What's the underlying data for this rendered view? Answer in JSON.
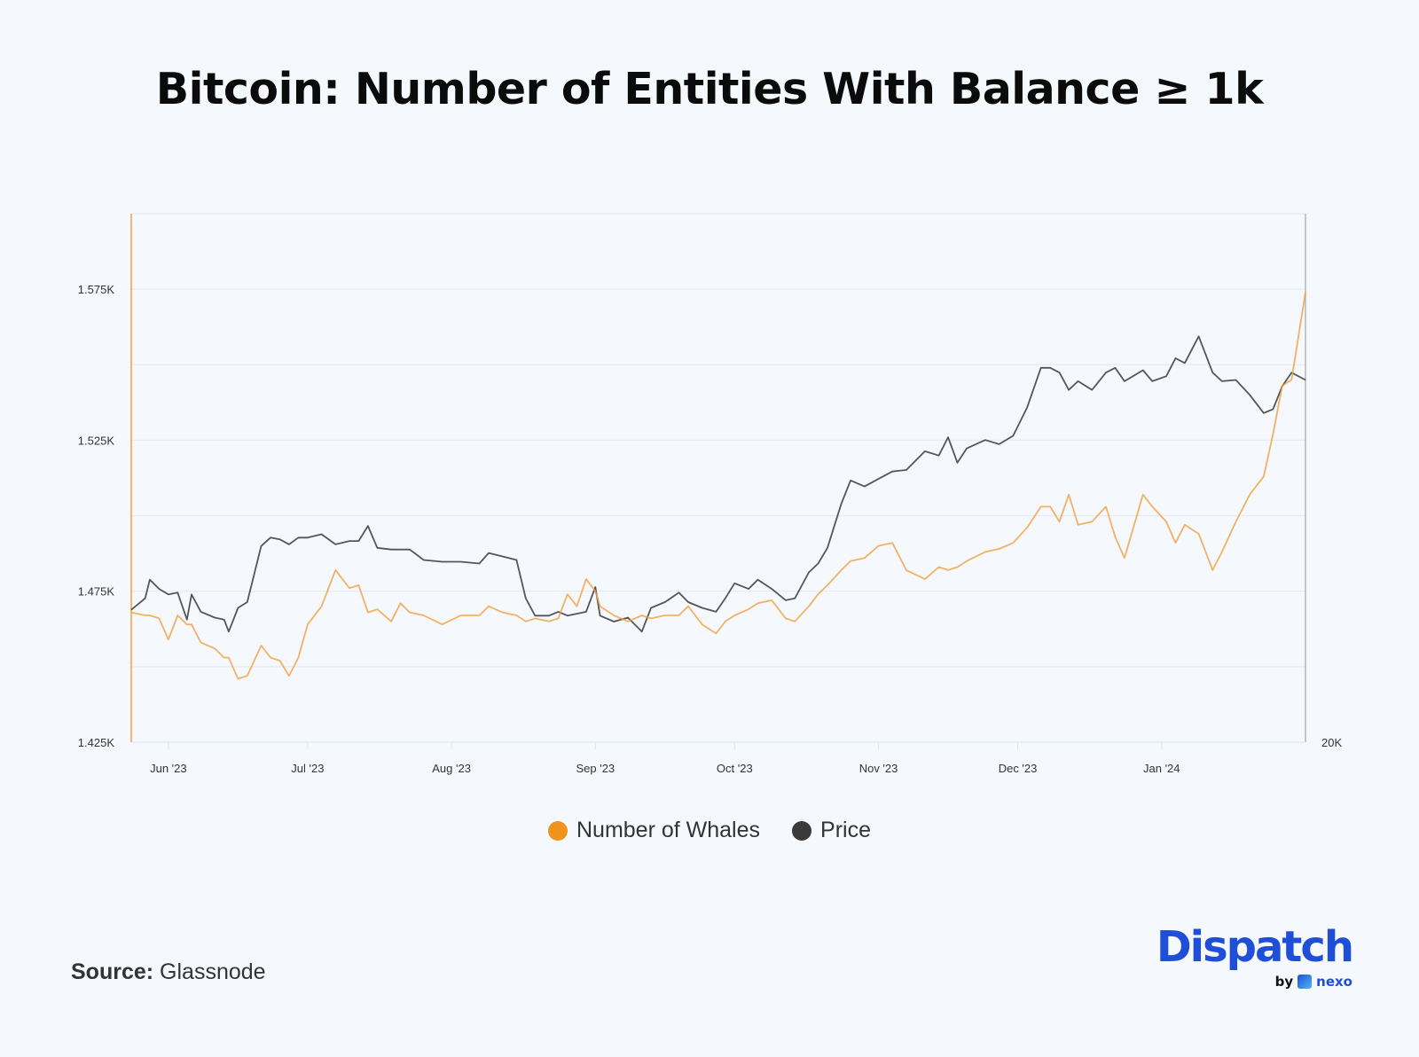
{
  "title": "Bitcoin: Number of Entities With Balance ≥ 1k",
  "source_label": "Source:",
  "source_value": "Glassnode",
  "logo": {
    "word": "Dispatch",
    "by": "by",
    "partner": "nexo"
  },
  "colors": {
    "whales": "#f0a040",
    "price": "#3a3a3a",
    "brand": "#1f4fd8"
  },
  "chart_data": {
    "type": "line",
    "title": "Bitcoin: Number of Entities With Balance ≥ 1k",
    "xlabel": "",
    "ylabel": "",
    "x_range": [
      "2023-05-24",
      "2024-02-01"
    ],
    "x_ticks": [
      {
        "date": "2023-06-01",
        "label": "Jun '23"
      },
      {
        "date": "2023-07-01",
        "label": "Jul '23"
      },
      {
        "date": "2023-08-01",
        "label": "Aug '23"
      },
      {
        "date": "2023-09-01",
        "label": "Sep '23"
      },
      {
        "date": "2023-10-01",
        "label": "Oct '23"
      },
      {
        "date": "2023-11-01",
        "label": "Nov '23"
      },
      {
        "date": "2023-12-01",
        "label": "Dec '23"
      },
      {
        "date": "2024-01-01",
        "label": "Jan '24"
      }
    ],
    "y_left": {
      "ylim": [
        1425,
        1600
      ],
      "ticks": [
        1425,
        1475,
        1525,
        1575
      ],
      "tick_labels": [
        "1.425K",
        "1.475K",
        "1.525K",
        "1.575K"
      ],
      "grid_step": 25
    },
    "y_right": {
      "scale": "log",
      "ylim": [
        20000,
        57000
      ],
      "ticks": [
        20000
      ],
      "tick_labels": [
        "20K"
      ]
    },
    "grid": true,
    "legend_position": "bottom",
    "dates": [
      "2023-05-24",
      "2023-05-27",
      "2023-05-28",
      "2023-05-30",
      "2023-06-01",
      "2023-06-03",
      "2023-06-05",
      "2023-06-06",
      "2023-06-08",
      "2023-06-11",
      "2023-06-13",
      "2023-06-14",
      "2023-06-16",
      "2023-06-18",
      "2023-06-21",
      "2023-06-23",
      "2023-06-25",
      "2023-06-27",
      "2023-06-29",
      "2023-07-01",
      "2023-07-04",
      "2023-07-07",
      "2023-07-10",
      "2023-07-12",
      "2023-07-14",
      "2023-07-16",
      "2023-07-19",
      "2023-07-21",
      "2023-07-23",
      "2023-07-26",
      "2023-07-30",
      "2023-08-03",
      "2023-08-07",
      "2023-08-09",
      "2023-08-12",
      "2023-08-15",
      "2023-08-17",
      "2023-08-19",
      "2023-08-22",
      "2023-08-24",
      "2023-08-26",
      "2023-08-28",
      "2023-08-30",
      "2023-09-01",
      "2023-09-02",
      "2023-09-05",
      "2023-09-08",
      "2023-09-11",
      "2023-09-13",
      "2023-09-16",
      "2023-09-19",
      "2023-09-21",
      "2023-09-24",
      "2023-09-27",
      "2023-09-29",
      "2023-10-01",
      "2023-10-04",
      "2023-10-06",
      "2023-10-09",
      "2023-10-12",
      "2023-10-14",
      "2023-10-17",
      "2023-10-19",
      "2023-10-21",
      "2023-10-24",
      "2023-10-26",
      "2023-10-29",
      "2023-11-01",
      "2023-11-04",
      "2023-11-07",
      "2023-11-11",
      "2023-11-14",
      "2023-11-16",
      "2023-11-18",
      "2023-11-20",
      "2023-11-24",
      "2023-11-27",
      "2023-11-30",
      "2023-12-03",
      "2023-12-06",
      "2023-12-08",
      "2023-12-10",
      "2023-12-12",
      "2023-12-14",
      "2023-12-17",
      "2023-12-20",
      "2023-12-22",
      "2023-12-24",
      "2023-12-28",
      "2023-12-30",
      "2024-01-02",
      "2024-01-04",
      "2024-01-06",
      "2024-01-09",
      "2024-01-12",
      "2024-01-14",
      "2024-01-17",
      "2024-01-20",
      "2024-01-23",
      "2024-01-25",
      "2024-01-27",
      "2024-01-29",
      "2024-02-01"
    ],
    "series": [
      {
        "name": "Number of Whales",
        "axis": "left",
        "color": "#f0a040",
        "values": [
          1468,
          1467,
          1467,
          1466,
          1459,
          1467,
          1464,
          1464,
          1458,
          1456,
          1453,
          1453,
          1446,
          1447,
          1457,
          1453,
          1452,
          1447,
          1453,
          1464,
          1470,
          1482,
          1476,
          1477,
          1468,
          1469,
          1465,
          1471,
          1468,
          1467,
          1464,
          1467,
          1467,
          1470,
          1468,
          1467,
          1465,
          1466,
          1465,
          1466,
          1474,
          1470,
          1479,
          1475,
          1470,
          1467,
          1465,
          1467,
          1466,
          1467,
          1467,
          1470,
          1464,
          1461,
          1465,
          1467,
          1469,
          1471,
          1472,
          1466,
          1465,
          1470,
          1474,
          1477,
          1482,
          1485,
          1486,
          1490,
          1491,
          1482,
          1479,
          1483,
          1482,
          1483,
          1485,
          1488,
          1489,
          1491,
          1496,
          1503,
          1503,
          1498,
          1507,
          1497,
          1498,
          1503,
          1493,
          1486,
          1507,
          1503,
          1498,
          1491,
          1497,
          1494,
          1482,
          1488,
          1498,
          1507,
          1513,
          1527,
          1543,
          1545,
          1574
        ]
      },
      {
        "name": "Price",
        "axis": "right",
        "color": "#3a3a3a",
        "values": [
          26000,
          26600,
          27600,
          27100,
          26800,
          26900,
          25500,
          26800,
          25900,
          25600,
          25500,
          24900,
          26100,
          26400,
          29500,
          30000,
          29900,
          29600,
          30000,
          30000,
          30200,
          29600,
          29800,
          29800,
          30700,
          29400,
          29300,
          29300,
          29300,
          28700,
          28600,
          28600,
          28500,
          29100,
          28900,
          28700,
          26600,
          25700,
          25700,
          25900,
          25700,
          25800,
          25900,
          27200,
          25700,
          25400,
          25600,
          24900,
          26100,
          26400,
          26900,
          26400,
          26100,
          25900,
          26600,
          27400,
          27100,
          27600,
          27100,
          26500,
          26600,
          28000,
          28500,
          29400,
          32100,
          33600,
          33200,
          33700,
          34200,
          34300,
          35600,
          35300,
          36600,
          34800,
          35800,
          36400,
          36100,
          36700,
          38800,
          42000,
          42000,
          41600,
          40200,
          40900,
          40200,
          41600,
          42000,
          40900,
          41800,
          40900,
          41300,
          42800,
          42400,
          44700,
          41600,
          40900,
          41000,
          39800,
          38400,
          38700,
          40500,
          41600,
          41000
        ]
      }
    ]
  }
}
